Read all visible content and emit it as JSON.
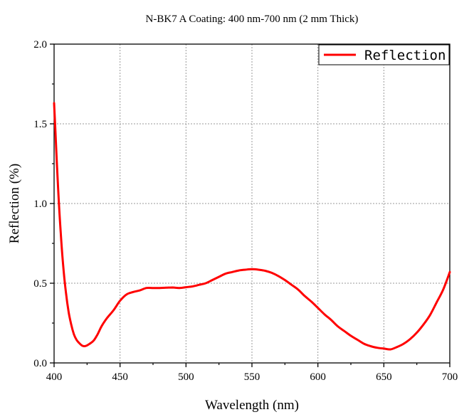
{
  "chart_data": {
    "type": "line",
    "title": "N-BK7 A Coating: 400 nm-700 nm (2 mm Thick)",
    "xlabel": "Wavelength (nm)",
    "ylabel": "Reflection (%)",
    "xlim": [
      400,
      700
    ],
    "ylim": [
      0.0,
      2.0
    ],
    "xticks": [
      400,
      450,
      500,
      550,
      600,
      650,
      700
    ],
    "yticks": [
      0.0,
      0.5,
      1.0,
      1.5,
      2.0
    ],
    "xtick_labels": [
      "400",
      "450",
      "500",
      "550",
      "600",
      "650",
      "700"
    ],
    "ytick_labels": [
      "0.0",
      "0.5",
      "1.0",
      "1.5",
      "2.0"
    ],
    "grid": true,
    "legend_position": "top-right",
    "series": [
      {
        "name": "Reflection",
        "color": "#ff0000",
        "x": [
          400,
          401,
          403,
          405,
          407,
          409,
          411,
          413,
          415,
          417,
          419,
          421,
          423,
          425,
          427,
          430,
          433,
          436,
          440,
          445,
          450,
          455,
          460,
          465,
          470,
          475,
          480,
          485,
          490,
          495,
          500,
          505,
          510,
          515,
          520,
          525,
          530,
          535,
          540,
          545,
          550,
          555,
          560,
          565,
          570,
          575,
          580,
          585,
          590,
          595,
          600,
          605,
          610,
          615,
          620,
          625,
          630,
          635,
          640,
          645,
          650,
          655,
          660,
          665,
          670,
          675,
          680,
          685,
          690,
          695,
          700
        ],
        "y": [
          1.63,
          1.45,
          1.1,
          0.82,
          0.6,
          0.44,
          0.32,
          0.24,
          0.18,
          0.145,
          0.125,
          0.11,
          0.105,
          0.11,
          0.12,
          0.14,
          0.18,
          0.23,
          0.28,
          0.33,
          0.39,
          0.43,
          0.445,
          0.455,
          0.47,
          0.47,
          0.47,
          0.472,
          0.473,
          0.47,
          0.475,
          0.48,
          0.49,
          0.5,
          0.52,
          0.54,
          0.56,
          0.57,
          0.58,
          0.585,
          0.588,
          0.585,
          0.578,
          0.565,
          0.545,
          0.52,
          0.49,
          0.46,
          0.42,
          0.385,
          0.345,
          0.305,
          0.27,
          0.23,
          0.2,
          0.17,
          0.145,
          0.12,
          0.105,
          0.095,
          0.09,
          0.085,
          0.1,
          0.12,
          0.15,
          0.19,
          0.24,
          0.3,
          0.38,
          0.46,
          0.57
        ]
      }
    ]
  }
}
